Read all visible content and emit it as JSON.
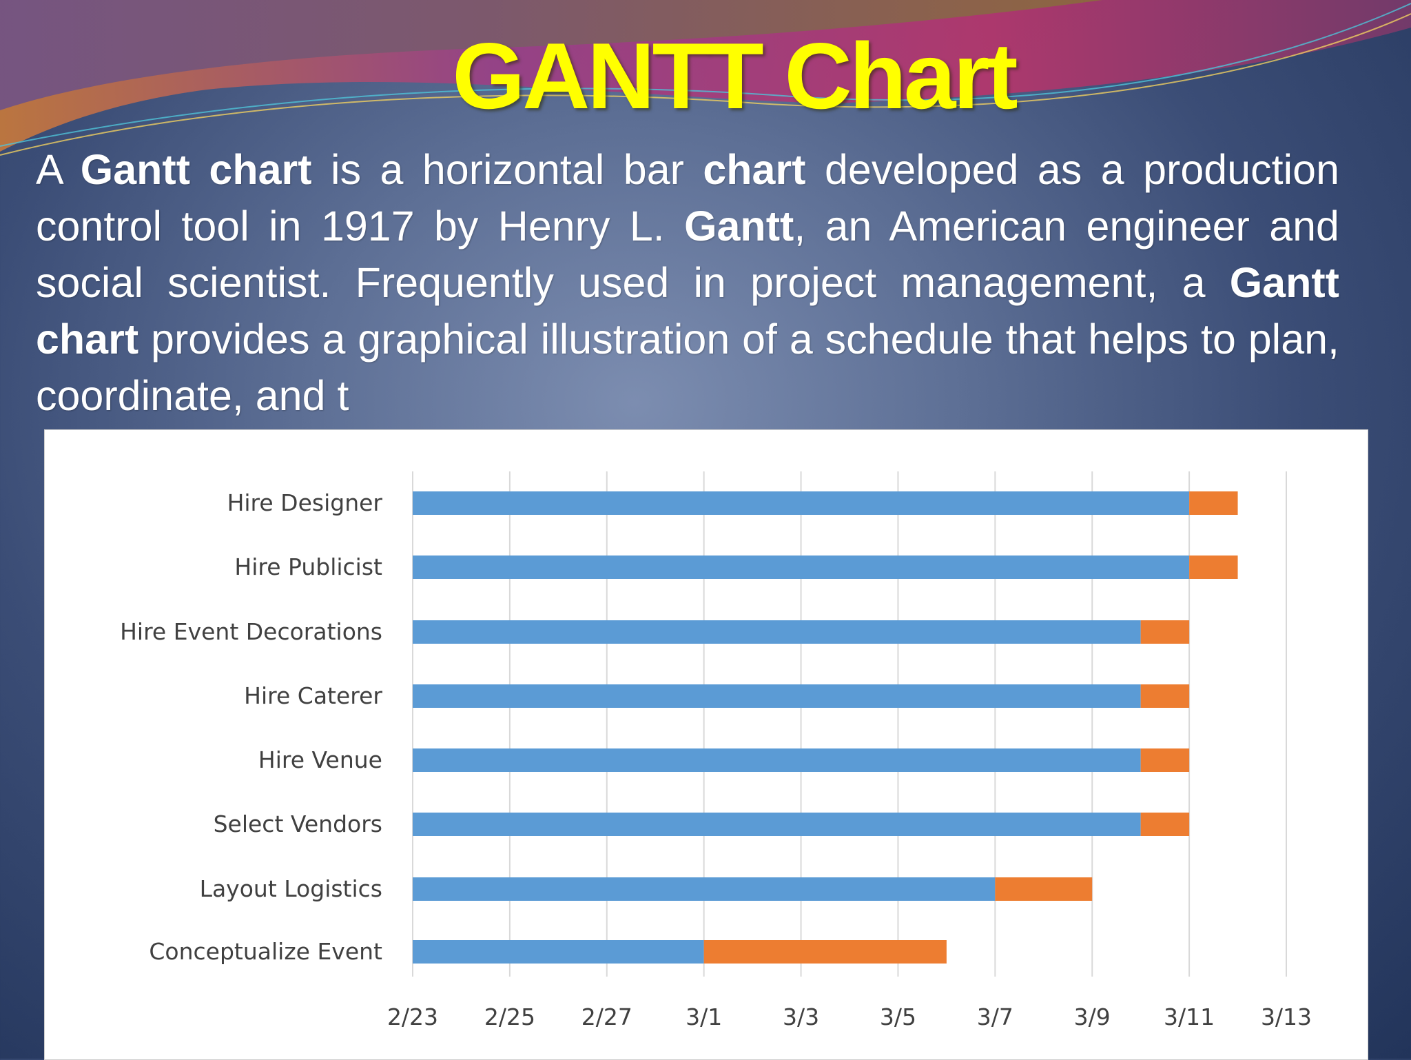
{
  "slide": {
    "title": "GANTT Chart",
    "paragraph": [
      {
        "text": "A ",
        "bold": false
      },
      {
        "text": "Gantt chart",
        "bold": true
      },
      {
        "text": " is a horizontal bar ",
        "bold": false
      },
      {
        "text": "chart",
        "bold": true
      },
      {
        "text": " developed as a production control tool in 1917 by Henry L. ",
        "bold": false
      },
      {
        "text": "Gantt",
        "bold": true
      },
      {
        "text": ", an American engineer and social scientist. Frequently used in project management, a ",
        "bold": false
      },
      {
        "text": "Gantt chart",
        "bold": true
      },
      {
        "text": " provides a graphical illustration of a schedule that helps to plan, coordinate, and t",
        "bold": false
      }
    ]
  },
  "colors": {
    "title": "#ffff00",
    "start_series": "#5b9bd5",
    "duration_series": "#ed7d31",
    "gridline": "#d9d9d9"
  },
  "chart_data": {
    "type": "bar",
    "orientation": "horizontal",
    "stacked": true,
    "categories": [
      "Hire Designer",
      "Hire Publicist",
      "Hire Event Decorations",
      "Hire Caterer",
      "Hire Venue",
      "Select Vendors",
      "Layout Logistics",
      "Conceptualize Event"
    ],
    "series": [
      {
        "values": [
          "3/11",
          "3/11",
          "3/10",
          "3/10",
          "3/10",
          "3/10",
          "3/7",
          "3/1"
        ]
      },
      {
        "values": [
          "3/12",
          "3/12",
          "3/11",
          "3/11",
          "3/11",
          "3/11",
          "3/9",
          "3/6"
        ]
      }
    ],
    "x_tick_labels": [
      "2/23",
      "2/25",
      "2/27",
      "3/1",
      "3/3",
      "3/5",
      "3/7",
      "3/9",
      "3/11",
      "3/13"
    ],
    "xlim": [
      "2/23",
      "3/13"
    ],
    "grid": true,
    "legend": "none"
  }
}
